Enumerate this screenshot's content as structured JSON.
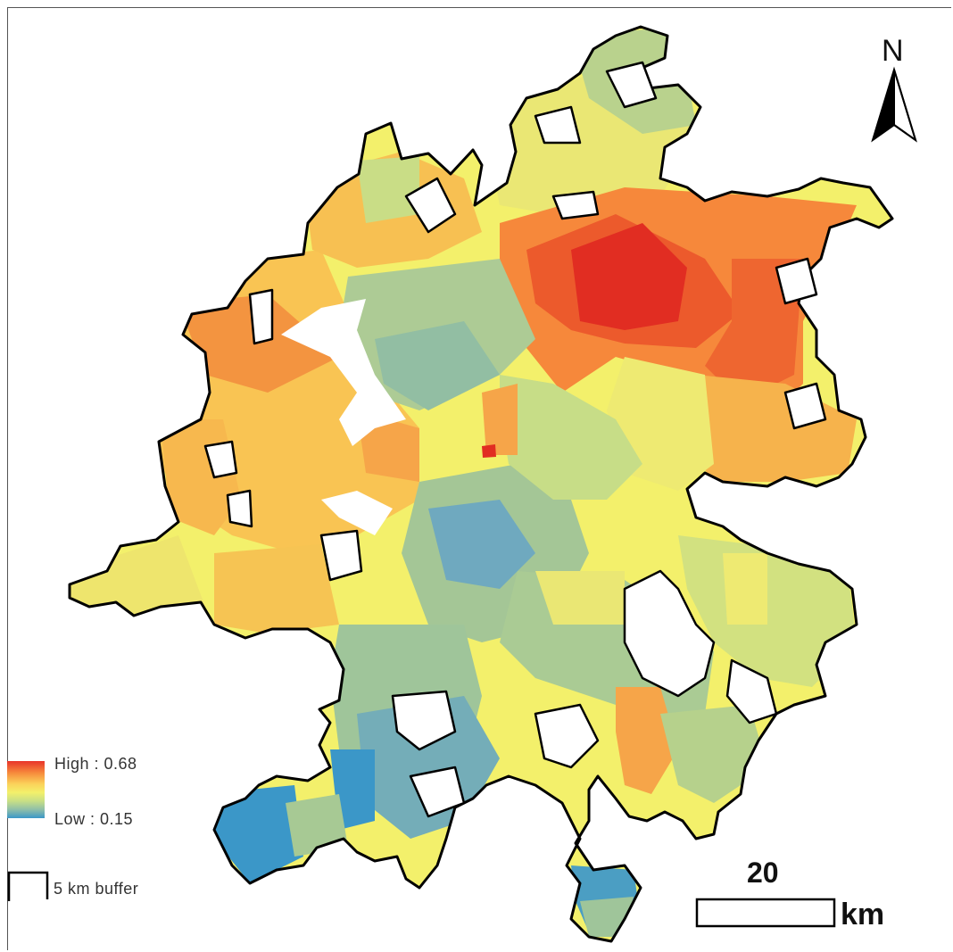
{
  "map": {
    "north_label": "N",
    "scale": {
      "distance_label": "20",
      "unit_label": "km"
    },
    "legend": {
      "high_label": "High : 0.68",
      "low_label": "Low : 0.15",
      "buffer_label": "5 km buffer",
      "gradient_colors": [
        "#e8332a",
        "#f6883b",
        "#fbd25a",
        "#f3f06b",
        "#c8df86",
        "#8fbfa9",
        "#3b97c8"
      ]
    },
    "colors": {
      "high": "#e8332a",
      "orange": "#f6883b",
      "light_orange": "#f9b54d",
      "yellow": "#f3f06b",
      "pale_green": "#c8df86",
      "sage": "#a8c897",
      "teal": "#8fbfa9",
      "blue_gray": "#74adb8",
      "blue": "#3b97c8",
      "outline": "#000000"
    }
  }
}
